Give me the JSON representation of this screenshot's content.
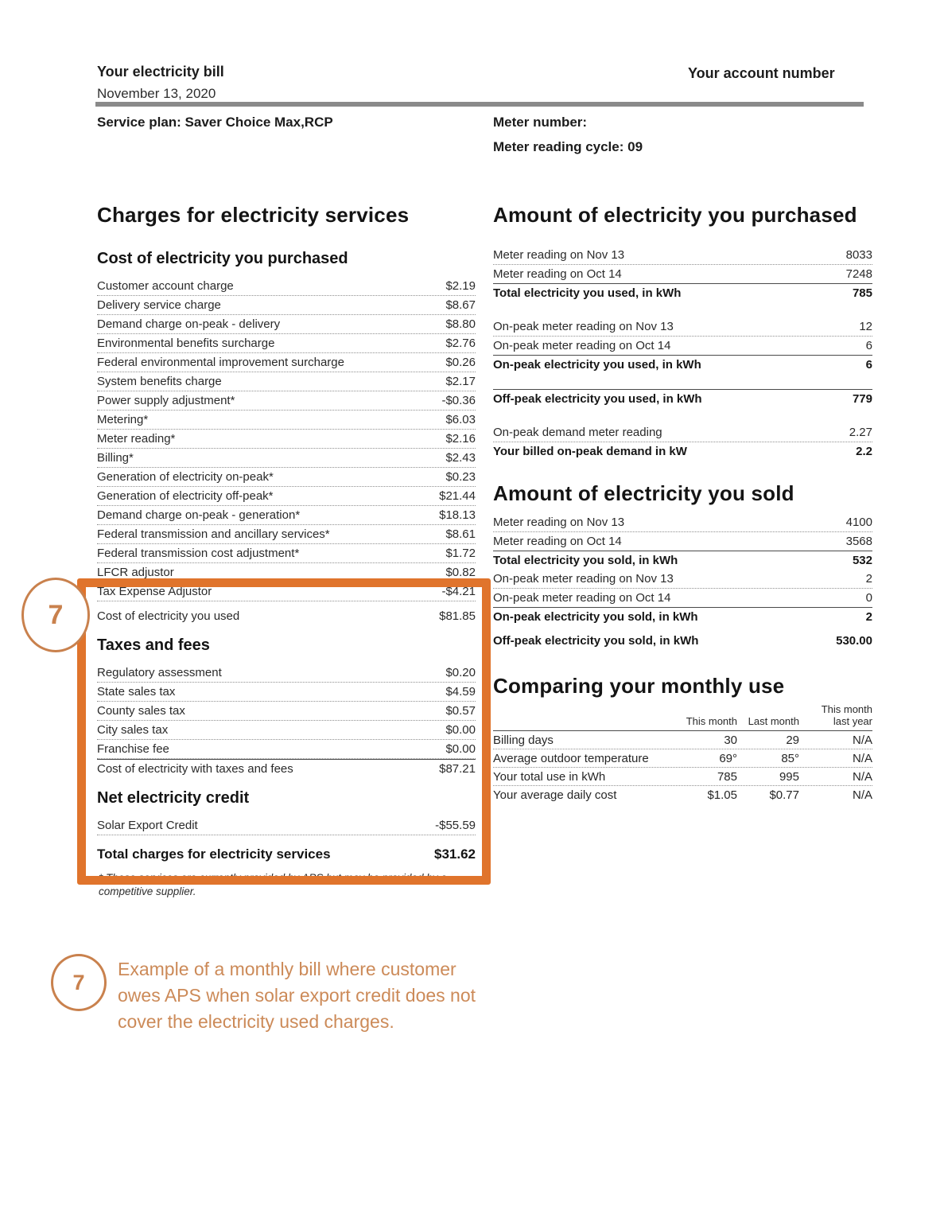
{
  "header": {
    "title": "Your electricity bill",
    "date": "November 13, 2020",
    "account_label": "Your account number",
    "service_plan": "Service plan: Saver Choice Max,RCP",
    "meter_number": "Meter number:",
    "meter_cycle": "Meter reading cycle: 09"
  },
  "left": {
    "title": "Charges for electricity services",
    "purchased_title": "Cost of electricity you purchased",
    "purchased_rows": [
      {
        "label": "Customer account charge",
        "value": "$2.19",
        "cls": "dot"
      },
      {
        "label": "Delivery service charge",
        "value": "$8.67",
        "cls": "dot"
      },
      {
        "label": "Demand charge on-peak - delivery",
        "value": "$8.80",
        "cls": "dot"
      },
      {
        "label": "Environmental benefits surcharge",
        "value": "$2.76",
        "cls": "dot"
      },
      {
        "label": "Federal environmental improvement surcharge",
        "value": "$0.26",
        "cls": "dot"
      },
      {
        "label": "System benefits charge",
        "value": "$2.17",
        "cls": "dot"
      },
      {
        "label": "Power supply adjustment*",
        "value": "-$0.36",
        "cls": "dot"
      },
      {
        "label": "Metering*",
        "value": "$6.03",
        "cls": "dot"
      },
      {
        "label": "Meter reading*",
        "value": "$2.16",
        "cls": "dot"
      },
      {
        "label": "Billing*",
        "value": "$2.43",
        "cls": "dot"
      },
      {
        "label": "Generation of electricity on-peak*",
        "value": "$0.23",
        "cls": "dot"
      },
      {
        "label": "Generation of electricity off-peak*",
        "value": "$21.44",
        "cls": "dot"
      },
      {
        "label": "Demand charge on-peak - generation*",
        "value": "$18.13",
        "cls": "dot"
      },
      {
        "label": "Federal transmission and ancillary services*",
        "value": "$8.61",
        "cls": "dot"
      },
      {
        "label": "Federal transmission cost adjustment*",
        "value": "$1.72",
        "cls": "dot"
      },
      {
        "label": "LFCR adjustor",
        "value": "$0.82",
        "cls": "dot"
      },
      {
        "label": "Tax Expense Adjustor",
        "value": "-$4.21",
        "cls": "dot"
      },
      {
        "label": "Cost of electricity you used",
        "value": "$81.85",
        "cls": "gap-sm"
      }
    ],
    "taxes_title": "Taxes and fees",
    "taxes_rows": [
      {
        "label": "Regulatory assessment",
        "value": "$0.20",
        "cls": "dot"
      },
      {
        "label": "State sales tax",
        "value": "$4.59",
        "cls": "dot"
      },
      {
        "label": "County sales tax",
        "value": "$0.57",
        "cls": "dot"
      },
      {
        "label": "City sales tax",
        "value": "$0.00",
        "cls": "dot"
      },
      {
        "label": "Franchise fee",
        "value": "$0.00",
        "cls": "dot"
      },
      {
        "label": "Cost of electricity with taxes and fees",
        "value": "$87.21",
        "cls": "topline"
      }
    ],
    "credit_title": "Net electricity credit",
    "credit_rows": [
      {
        "label": "Solar Export Credit",
        "value": "-$55.59",
        "cls": "dot"
      }
    ],
    "total_label": "Total charges for electricity services",
    "total_value": "$31.62",
    "footnote": "* These services are currently provided by APS but may be provided by a competitive supplier."
  },
  "right": {
    "purchased_title": "Amount of electricity you purchased",
    "purchased_rows": [
      {
        "label": "Meter reading on Nov 13",
        "value": "8033",
        "cls": "dot"
      },
      {
        "label": "Meter reading on Oct 14",
        "value": "7248",
        "cls": "line"
      },
      {
        "label": "Total electricity you used, in kWh",
        "value": "785",
        "cls": "bold"
      },
      {
        "label": "On-peak meter reading on Nov 13",
        "value": "12",
        "cls": "dot gap"
      },
      {
        "label": "On-peak meter reading on Oct 14",
        "value": "6",
        "cls": "line"
      },
      {
        "label": "On-peak electricity you used, in kWh",
        "value": "6",
        "cls": "bold"
      },
      {
        "label": "Off-peak electricity you used, in kWh",
        "value": "779",
        "cls": "bold topline gap"
      },
      {
        "label": "On-peak demand meter reading",
        "value": "2.27",
        "cls": "dot gap"
      },
      {
        "label": "Your billed on-peak demand in kW",
        "value": "2.2",
        "cls": "bold"
      }
    ],
    "sold_title": "Amount of electricity you sold",
    "sold_rows": [
      {
        "label": "Meter reading on Nov 13",
        "value": "4100",
        "cls": "dot"
      },
      {
        "label": "Meter reading on Oct 14",
        "value": "3568",
        "cls": "line"
      },
      {
        "label": "Total electricity you sold, in kWh",
        "value": "532",
        "cls": "bold"
      },
      {
        "label": "On-peak meter reading on Nov 13",
        "value": "2",
        "cls": "dot"
      },
      {
        "label": "On-peak meter reading on Oct 14",
        "value": "0",
        "cls": "line"
      },
      {
        "label": "On-peak electricity you sold, in kWh",
        "value": "2",
        "cls": "bold"
      },
      {
        "label": "Off-peak electricity you sold, in kWh",
        "value": "530.00",
        "cls": "bold gap-sm"
      }
    ],
    "compare_title": "Comparing your monthly use",
    "compare": {
      "col_headers": [
        "This month",
        "Last month",
        "This month\nlast year"
      ],
      "rows": [
        {
          "label": "Billing days",
          "values": [
            "30",
            "29",
            "N/A"
          ]
        },
        {
          "label": "Average outdoor temperature",
          "values": [
            "69°",
            "85°",
            "N/A"
          ]
        },
        {
          "label": "Your total use in kWh",
          "values": [
            "785",
            "995",
            "N/A"
          ]
        },
        {
          "label": "Your average daily cost",
          "values": [
            "$1.05",
            "$0.77",
            "N/A"
          ]
        }
      ]
    }
  },
  "annotation": {
    "marker_number": "7",
    "text": "Example of a monthly bill where customer\nowes APS when solar export credit does not\ncover the electricity used charges.",
    "highlight_color": "#E0742C",
    "callout_color": "#CC8A58"
  }
}
